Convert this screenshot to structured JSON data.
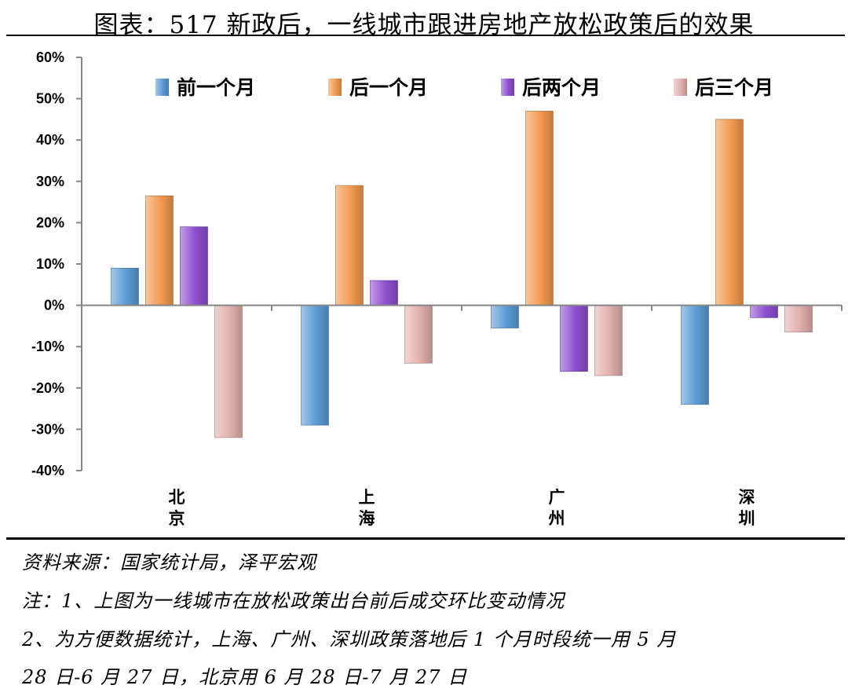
{
  "title": "图表：517 新政后，一线城市跟进房地产放松政策后的效果",
  "chart_data": {
    "type": "bar",
    "categories": [
      "北京",
      "上海",
      "广州",
      "深圳"
    ],
    "series": [
      {
        "name": "前一个月",
        "color": "#5b9bd5",
        "values": [
          9,
          -29,
          -5.5,
          -24
        ]
      },
      {
        "name": "后一个月",
        "color": "#f29a50",
        "values": [
          26.5,
          29,
          47,
          45
        ]
      },
      {
        "name": "后两个月",
        "color": "#8f4fd0",
        "values": [
          19,
          6,
          -16,
          -3
        ]
      },
      {
        "name": "后三个月",
        "color": "#e2b0ad",
        "values": [
          -32,
          -14,
          -17,
          -6.5
        ]
      }
    ],
    "yticks": [
      "60%",
      "50%",
      "40%",
      "30%",
      "20%",
      "10%",
      "0%",
      "-10%",
      "-20%",
      "-30%",
      "-40%"
    ],
    "ylim": [
      -40,
      60
    ],
    "legend_position": "top",
    "grid": false
  },
  "notes": {
    "source": "资料来源：国家统计局，泽平宏观",
    "note1": "注：1、上图为一线城市在放松政策出台前后成交环比变动情况",
    "note2": "2、为方便数据统计，上海、广州、深圳政策落地后 1 个月时段统一用 5 月",
    "note3": "28 日-6 月 27 日，北京用 6 月 28 日-7 月 27 日"
  }
}
